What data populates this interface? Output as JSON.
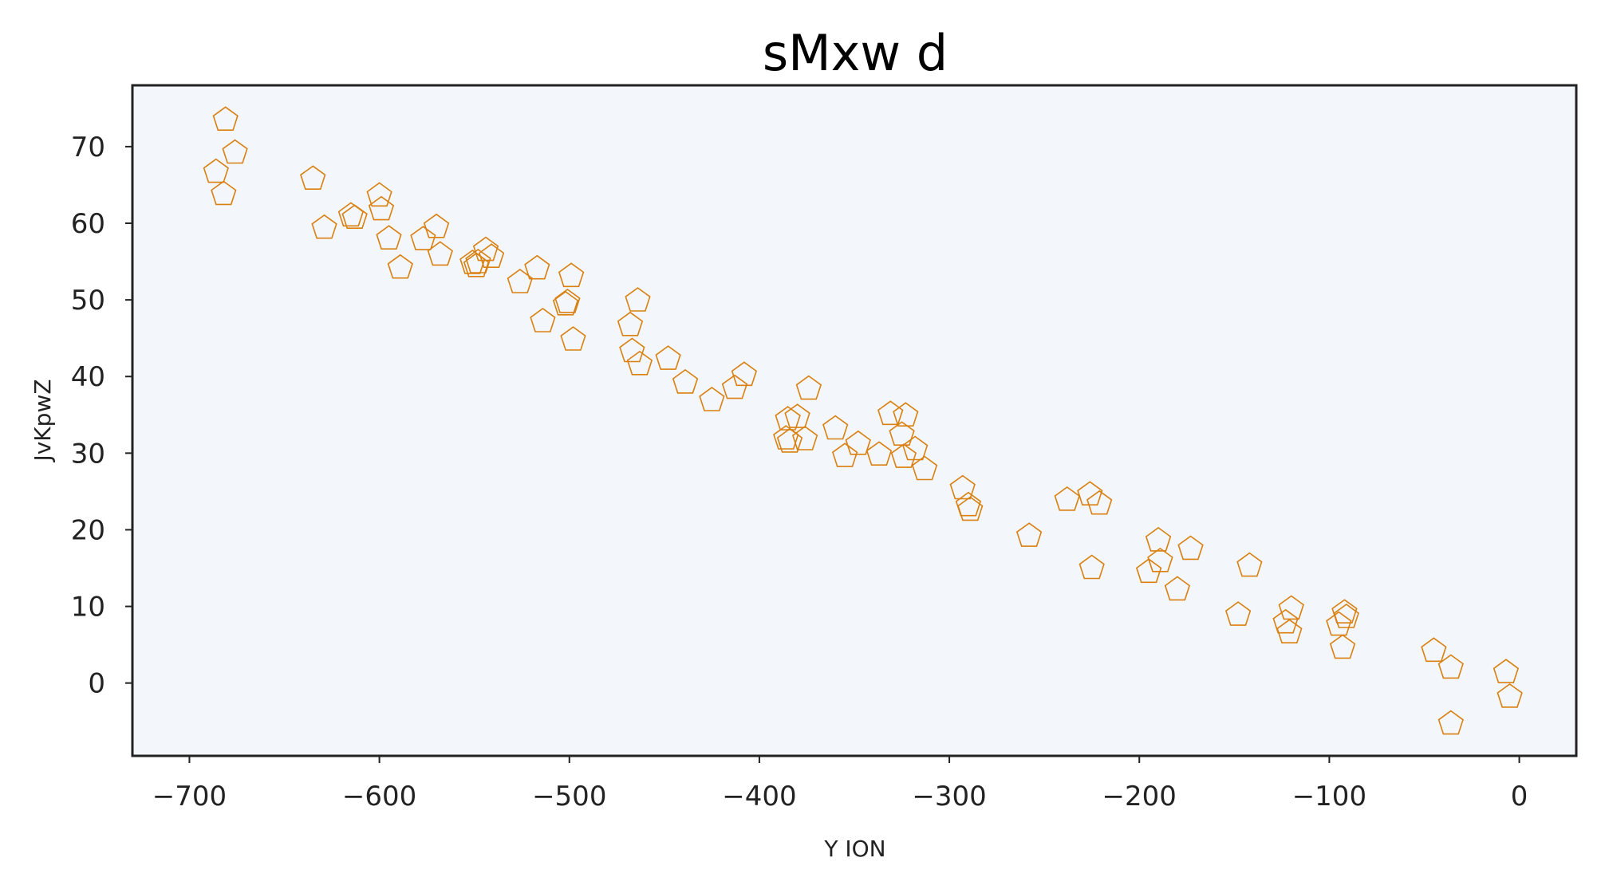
{
  "chart_data": {
    "type": "scatter",
    "title": "sMxw d",
    "xlabel": "Y ION",
    "ylabel": "JvKpwZ",
    "xlim": [
      -730,
      30
    ],
    "ylim": [
      -9.5,
      78
    ],
    "xticks": [
      -700,
      -600,
      -500,
      -400,
      -300,
      -200,
      -100,
      0
    ],
    "yticks": [
      0,
      10,
      20,
      30,
      40,
      50,
      60,
      70
    ],
    "grid": false,
    "marker": "pentagon-open",
    "colors": {
      "marker": "#d9800f",
      "plot_background": "#f3f6fb",
      "frame": "#222222"
    },
    "series": [
      {
        "x": [
          -681,
          -676,
          -686,
          -682,
          -635,
          -629,
          -615,
          -613,
          -600,
          -599,
          -595,
          -589,
          -577,
          -570,
          -568,
          -551,
          -549,
          -548,
          -544,
          -541,
          -526,
          -517,
          -514,
          -502,
          -501,
          -499,
          -498,
          -464,
          -468,
          -467,
          -463,
          -448,
          -439,
          -425,
          -413,
          -408,
          -374,
          -385,
          -386,
          -380,
          -384,
          -376,
          -360,
          -355,
          -348,
          -337,
          -331,
          -323,
          -325,
          -324,
          -318,
          -313,
          -293,
          -290,
          -289,
          -258,
          -238,
          -226,
          -221,
          -225,
          -190,
          -189,
          -195,
          -173,
          -180,
          -142,
          -148,
          -120,
          -123,
          -121,
          -92,
          -91,
          -95,
          -93,
          -45,
          -36,
          -36,
          -7,
          -5
        ],
        "y": [
          73.5,
          69.2,
          66.7,
          63.8,
          65.8,
          59.4,
          61.0,
          60.7,
          63.6,
          61.8,
          58.0,
          54.2,
          57.9,
          59.5,
          55.9,
          54.8,
          54.4,
          54.9,
          56.5,
          55.6,
          52.3,
          54.1,
          47.2,
          49.4,
          49.7,
          53.1,
          44.8,
          49.9,
          46.7,
          43.3,
          41.6,
          42.3,
          39.2,
          36.9,
          38.5,
          40.2,
          38.4,
          34.4,
          31.9,
          34.7,
          31.5,
          31.8,
          33.2,
          29.6,
          31.2,
          29.8,
          35.1,
          34.9,
          32.4,
          29.5,
          30.5,
          27.9,
          25.4,
          23.2,
          22.6,
          19.2,
          23.9,
          24.6,
          23.4,
          15.0,
          18.6,
          15.9,
          14.5,
          17.5,
          12.2,
          15.3,
          8.9,
          9.7,
          7.9,
          6.6,
          9.2,
          8.6,
          7.6,
          4.6,
          4.2,
          2.0,
          -5.3,
          1.4,
          -1.8
        ]
      }
    ]
  }
}
